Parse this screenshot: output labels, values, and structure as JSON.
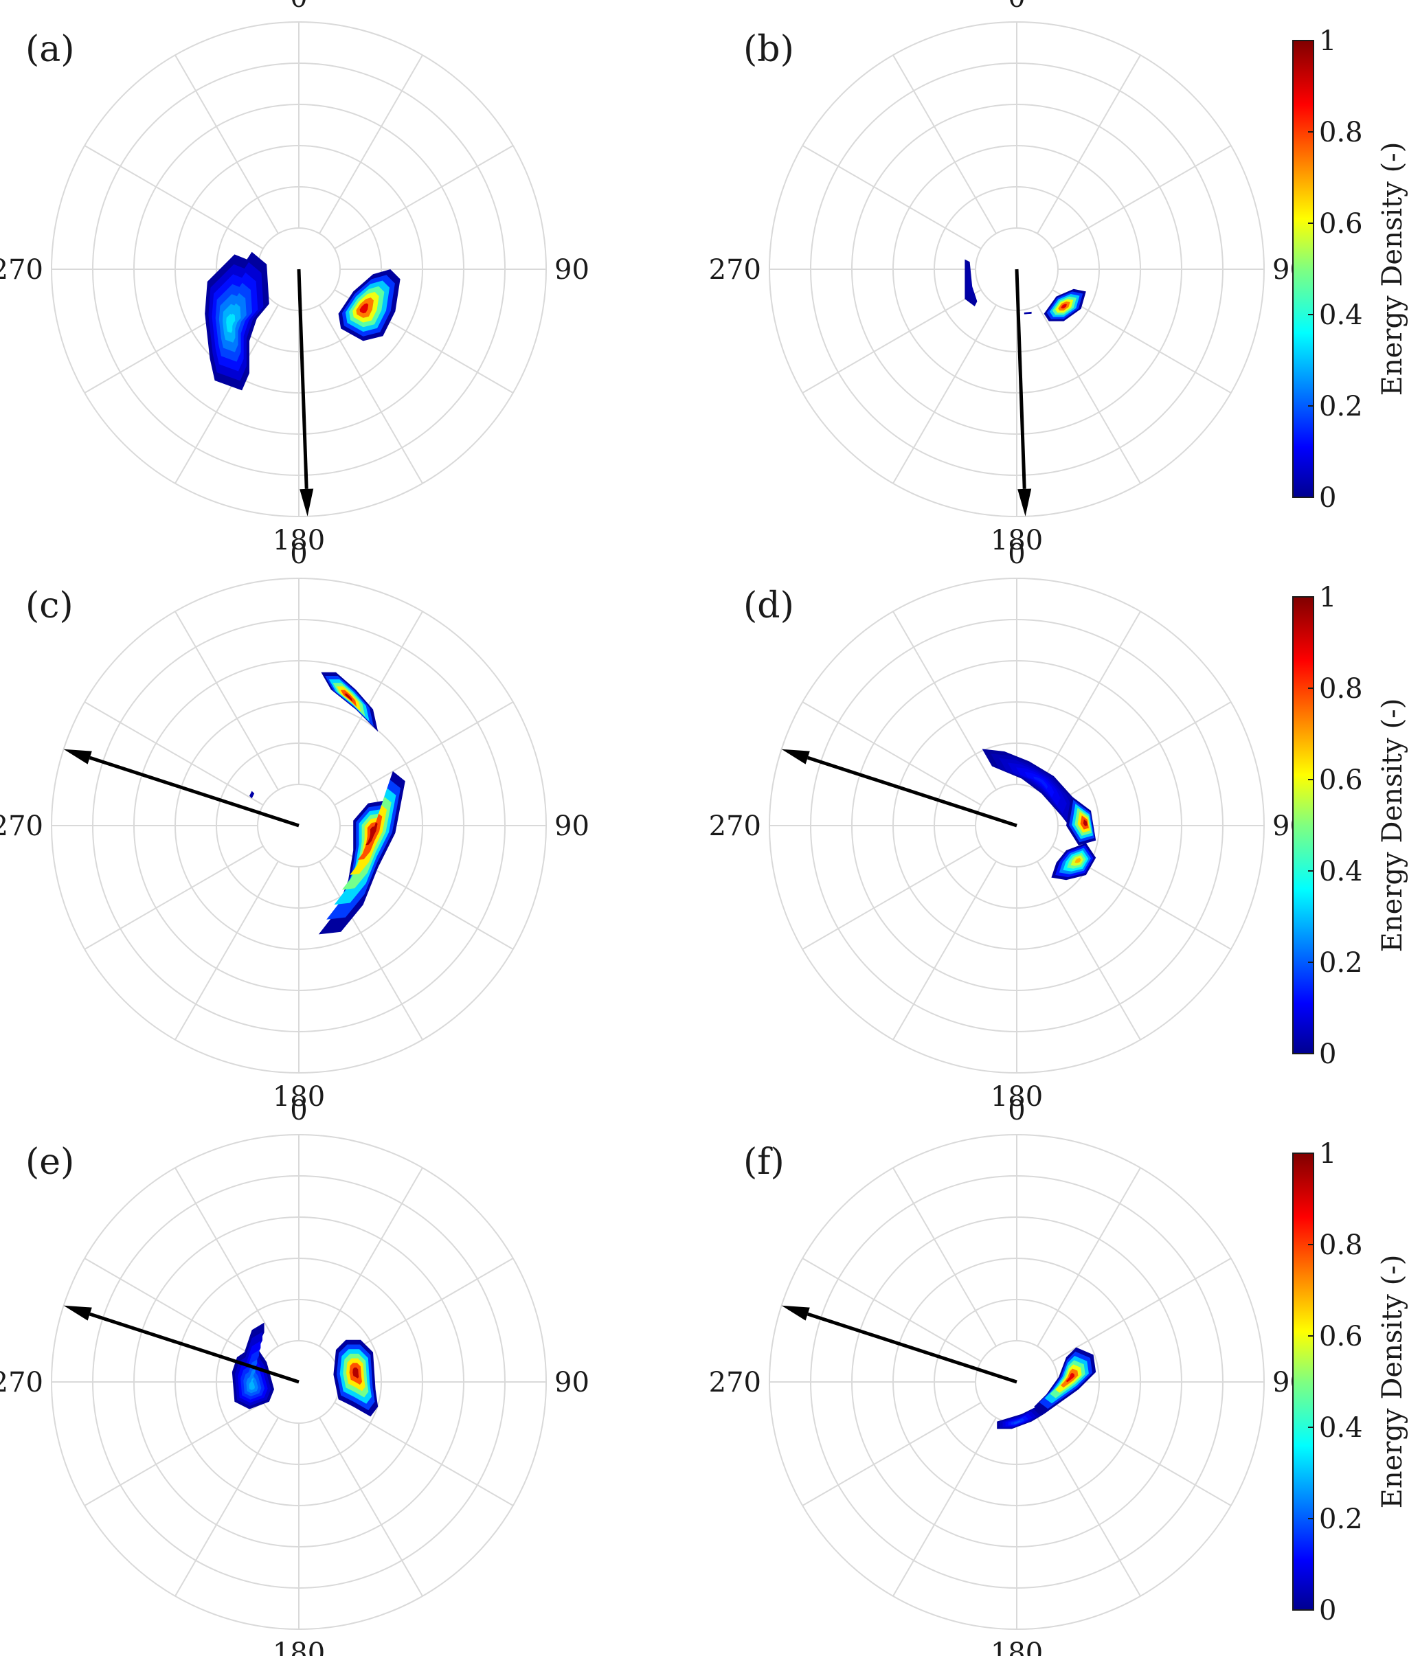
{
  "chart_data": {
    "type": "polar-contour",
    "angle_ticks": [
      "0",
      "90",
      "180",
      "270"
    ],
    "angle_convention": "clockwise from top (0 at top, 90 at right)",
    "ring_count": 6,
    "spoke_step_deg": 30,
    "colorbar": {
      "title": "Energy Density (-)",
      "range": [
        0,
        1
      ],
      "ticks": [
        "0",
        "0.2",
        "0.4",
        "0.6",
        "0.8",
        "1"
      ],
      "colormap": "jet"
    },
    "panels": [
      {
        "label": "(a)",
        "arrow_direction_deg": 178,
        "colorbar_shown": false,
        "regions": [
          {
            "center_deg": 238,
            "center_r": 0.6,
            "peak_density": 0.35
          },
          {
            "center_deg": 118,
            "center_r": 0.4,
            "peak_density": 0.9
          }
        ]
      },
      {
        "label": "(b)",
        "arrow_direction_deg": 178,
        "colorbar_shown": true,
        "regions": [
          {
            "center_deg": 258,
            "center_r": 0.33,
            "peak_density": 0.05
          },
          {
            "center_deg": 128,
            "center_r": 0.34,
            "peak_density": 0.9
          },
          {
            "center_deg": 175,
            "center_r": 0.26,
            "peak_density": 0.05
          }
        ]
      },
      {
        "label": "(c)",
        "arrow_direction_deg": 288,
        "colorbar_shown": false,
        "regions": [
          {
            "center_deg": 145,
            "center_r": 0.45,
            "peak_density": 0.95
          },
          {
            "center_deg": 102,
            "center_r": 0.44,
            "peak_density": 0.95
          },
          {
            "center_deg": 34,
            "center_r": 0.61,
            "peak_density": 0.05
          },
          {
            "center_deg": 296,
            "center_r": 0.36,
            "peak_density": 0.05
          }
        ]
      },
      {
        "label": "(d)",
        "arrow_direction_deg": 288,
        "colorbar_shown": true,
        "regions": [
          {
            "center_deg": 60,
            "center_r": 0.42,
            "peak_density": 0.15
          },
          {
            "center_deg": 100,
            "center_r": 0.38,
            "peak_density": 0.95
          },
          {
            "center_deg": 126,
            "center_r": 0.43,
            "peak_density": 0.7
          }
        ]
      },
      {
        "label": "(e)",
        "arrow_direction_deg": 288,
        "colorbar_shown": false,
        "regions": [
          {
            "center_deg": 262,
            "center_r": 0.43,
            "peak_density": 0.3
          },
          {
            "center_deg": 106,
            "center_r": 0.39,
            "peak_density": 0.95
          }
        ]
      },
      {
        "label": "(f)",
        "arrow_direction_deg": 288,
        "colorbar_shown": true,
        "regions": [
          {
            "center_deg": 110,
            "center_r": 0.38,
            "peak_density": 0.9
          },
          {
            "center_deg": 176,
            "center_r": 0.3,
            "peak_density": 0.2
          }
        ]
      }
    ]
  }
}
